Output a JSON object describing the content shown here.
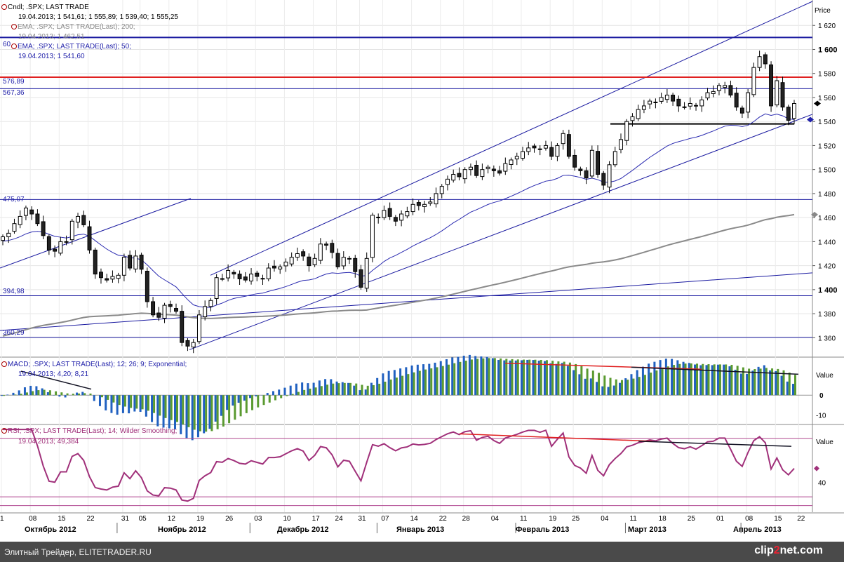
{
  "price_panel": {
    "axis_title": "Price",
    "legend": {
      "line1": "Cndl; .SPX; LAST TRADE",
      "line1_values": "19.04.2013; 1 541,61; 1 555,89; 1 539,40; 1 555,25",
      "line2": "EMA; .SPX; LAST TRADE(Last); 200;",
      "line2_values": "19.04.2013; 1 462,51",
      "line3": "EMA; .SPX; LAST TRADE(Last); 50;",
      "line3_values": "19.04.2013; 1 541,60"
    },
    "level_labels": [
      "60",
      "576,89",
      "567,36",
      "475,07",
      "394,98",
      "360,29"
    ],
    "colors": {
      "bg": "#ffffff",
      "grid": "#d8d8d8",
      "blue_line": "#1a1aa0",
      "red_line": "#e02020",
      "ema200": "#8a8a8a",
      "ema50": "#2a2ab0"
    }
  },
  "macd_panel": {
    "legend": "MACD; .SPX; LAST TRADE(Last); 12; 26; 9; Exponential;",
    "legend_values": "19.04.2013; 4,20; 8,21",
    "axis_title": "Value",
    "colors": {
      "hist_blue": "#2060c0",
      "hist_green": "#5a9a30"
    }
  },
  "rsi_panel": {
    "legend": "RSI; .SPX; LAST TRADE(Last); 14; Wilder Smoothing;",
    "legend_values": "19.04.2013; 49,384",
    "axis_title": "Value",
    "colors": {
      "rsi": "#a0307a",
      "level": "#b04890"
    }
  },
  "x_axis": {
    "day_ticks": [
      "1",
      "08",
      "15",
      "22",
      "31",
      "05",
      "12",
      "19",
      "26",
      "03",
      "10",
      "17",
      "24",
      "31",
      "07",
      "14",
      "22",
      "28",
      "04",
      "11",
      "19",
      "25",
      "04",
      "11",
      "18",
      "25",
      "01",
      "08",
      "15",
      "22"
    ],
    "months": [
      "Октябрь 2012",
      "Ноябрь 2012",
      "Декабрь 2012",
      "Январь 2013",
      "Февраль 2013",
      "Март 2013",
      "Апрель 2013"
    ]
  },
  "footer": {
    "text": "Элитный Трейдер, ELITETRADER.RU",
    "logo_part1": "clip",
    "logo_part2": "2",
    "logo_part3": "net",
    "logo_part4": ".com"
  },
  "chart_data": [
    {
      "type": "candlestick",
      "title": "Cndl; .SPX; LAST TRADE",
      "ylabel": "Price",
      "ylim": [
        1345,
        1640
      ],
      "y_ticks": [
        1360,
        1380,
        1400,
        1420,
        1440,
        1460,
        1480,
        1500,
        1520,
        1540,
        1560,
        1580,
        1600,
        1620
      ],
      "x_start": "2012-10-01",
      "x_end": "2013-04-19",
      "close": [
        1444,
        1447,
        1455,
        1461,
        1468,
        1463,
        1455,
        1445,
        1433,
        1432,
        1440,
        1440,
        1457,
        1461,
        1454,
        1433,
        1413,
        1410,
        1408,
        1411,
        1412,
        1427,
        1418,
        1428,
        1417,
        1390,
        1379,
        1377,
        1387,
        1386,
        1382,
        1356,
        1353,
        1356,
        1379,
        1386,
        1391,
        1410,
        1409,
        1416,
        1413,
        1409,
        1408,
        1413,
        1411,
        1409,
        1418,
        1418,
        1419,
        1423,
        1427,
        1430,
        1428,
        1420,
        1426,
        1438,
        1437,
        1431,
        1419,
        1427,
        1426,
        1415,
        1402,
        1426,
        1462,
        1460,
        1466,
        1461,
        1457,
        1463,
        1465,
        1471,
        1470,
        1471,
        1473,
        1480,
        1486,
        1492,
        1496,
        1494,
        1500,
        1502,
        1495,
        1500,
        1502,
        1499,
        1497,
        1505,
        1508,
        1511,
        1515,
        1518,
        1518,
        1517,
        1520,
        1511,
        1520,
        1530,
        1511,
        1502,
        1499,
        1493,
        1516,
        1496,
        1487,
        1504,
        1515,
        1525,
        1540,
        1544,
        1550,
        1553,
        1557,
        1556,
        1560,
        1562,
        1557,
        1553,
        1552,
        1555,
        1553,
        1558,
        1564,
        1565,
        1570,
        1570,
        1562,
        1552,
        1547,
        1564,
        1585,
        1594,
        1588,
        1553,
        1574,
        1552,
        1541,
        1555
      ],
      "ema50_last": 1541.6,
      "ema200_last": 1462.51,
      "horizontal_levels": [
        1610,
        1576.89,
        1567.36,
        1475.07,
        1394.98,
        1360.29,
        1538
      ]
    },
    {
      "type": "bar",
      "title": "MACD; .SPX; LAST TRADE(Last); 12; 26; 9; Exponential;",
      "ylabel": "Value",
      "ylim": [
        -14,
        18
      ],
      "y_ticks": [
        0,
        -10
      ],
      "last_values": {
        "macd": 4.2,
        "signal": 8.21
      }
    },
    {
      "type": "line",
      "title": "RSI; .SPX; LAST TRADE(Last); 14; Wilder Smoothing;",
      "ylabel": "Value",
      "ylim": [
        20,
        78
      ],
      "y_ticks": [
        40
      ],
      "levels": [
        70,
        30
      ],
      "last_value": 49.384
    }
  ]
}
